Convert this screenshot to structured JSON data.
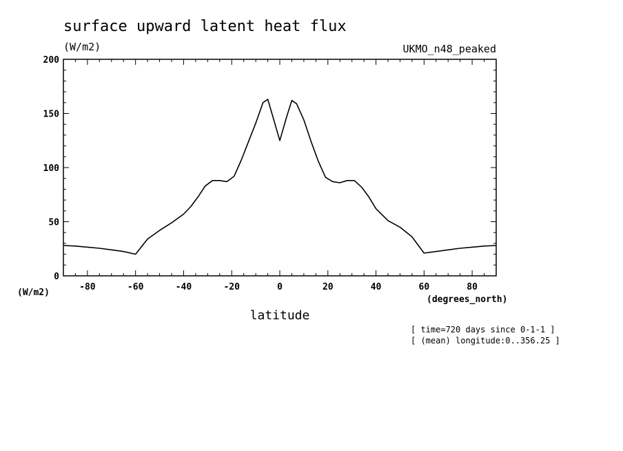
{
  "chart_data": {
    "type": "line",
    "title": "surface upward latent heat flux",
    "units": "(W/m2)",
    "model_label": "UKMO_n48_peaked",
    "ylabel_units": "(W/m2)",
    "xlabel": "latitude",
    "xunits": "(degrees_north)",
    "notes": [
      "[ time=720 days since 0-1-1 ]",
      "[ (mean) longitude:0..356.25 ]"
    ],
    "xlim": [
      -90,
      90
    ],
    "ylim": [
      0,
      200
    ],
    "xticks": [
      -80,
      -60,
      -40,
      -20,
      0,
      20,
      40,
      60,
      80
    ],
    "xtick_labels": [
      "-80",
      "-60",
      "-40",
      "-20",
      "0",
      "20",
      "40",
      "60",
      "80"
    ],
    "yticks": [
      0,
      50,
      100,
      150,
      200
    ],
    "ytick_labels": [
      "0",
      "50",
      "100",
      "150",
      "200"
    ],
    "grid": false,
    "series": [
      {
        "x": [
          -90,
          -85,
          -80,
          -75,
          -70,
          -65,
          -60,
          -55,
          -50,
          -45,
          -40,
          -37,
          -34,
          -31,
          -28,
          -25,
          -22,
          -19,
          -16,
          -13,
          -10,
          -7,
          -5,
          -3,
          0,
          3,
          5,
          7,
          10,
          13,
          16,
          19,
          22,
          25,
          28,
          31,
          34,
          37,
          40,
          45,
          50,
          55,
          60,
          65,
          70,
          75,
          80,
          85,
          90
        ],
        "values": [
          28,
          27.5,
          26.5,
          25.5,
          24,
          22.5,
          20,
          34,
          42,
          49,
          57,
          64,
          73,
          83,
          88,
          88,
          87,
          92,
          107,
          124,
          141,
          160,
          163,
          148,
          125,
          148,
          162,
          159,
          144,
          124,
          106,
          91,
          87,
          86,
          88,
          88,
          82,
          73,
          62,
          51,
          45,
          36,
          21,
          22.5,
          24,
          25.5,
          26.5,
          27.5,
          28
        ]
      }
    ]
  }
}
